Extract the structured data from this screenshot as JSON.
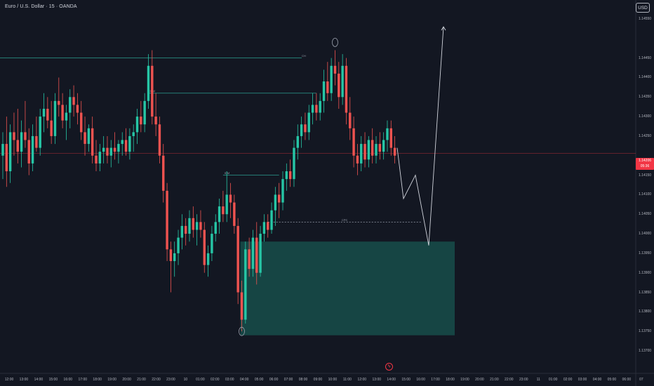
{
  "header": {
    "symbol_title": "Euro / U.S. Dollar · 15 · OANDA",
    "currency_button": "USD"
  },
  "price_badge": {
    "price": "1.14206",
    "countdown": "05:36"
  },
  "annotations": {
    "level_1": "CH",
    "level_2": "IDM",
    "level_3": "IDM",
    "level_4": "CPS"
  },
  "colors": {
    "background": "#131722",
    "bull": "#26c6a6",
    "bear": "#ef5350",
    "level_line": "#2a9d8f",
    "demand_zone": "#174d4a",
    "projection": "#d1d4dc",
    "current_price": "#f23645"
  },
  "icons": {
    "replay": "lightning-icon"
  },
  "chart_data": {
    "type": "candlestick",
    "title": "Euro / U.S. Dollar · 15 · OANDA",
    "ylim": [
      1.137,
      1.146
    ],
    "y_ticks": [
      "1.14550",
      "1.14450",
      "1.14400",
      "1.14350",
      "1.14300",
      "1.14250",
      "1.14150",
      "1.14100",
      "1.14050",
      "1.14000",
      "1.13950",
      "1.13900",
      "1.13850",
      "1.13800",
      "1.13750",
      "1.13700"
    ],
    "x_ticks": [
      "12:00",
      "13:00",
      "14:00",
      "15:00",
      "16:00",
      "17:00",
      "18:00",
      "19:00",
      "20:00",
      "21:00",
      "22:00",
      "23:00",
      "10",
      "01:00",
      "02:00",
      "03:00",
      "04:00",
      "05:00",
      "06:00",
      "07:00",
      "08:00",
      "09:00",
      "10:00",
      "11:00",
      "12:00",
      "13:00",
      "14:00",
      "15:00",
      "16:00",
      "17:00",
      "18:00",
      "19:00",
      "20:00",
      "21:00",
      "22:00",
      "23:00",
      "11",
      "01:00",
      "02:00",
      "03:00",
      "04:00",
      "05:00",
      "06:00",
      "07"
    ],
    "current_price": 1.14206,
    "candles": [
      {
        "t": "11:00",
        "o": 1.142,
        "h": 1.1426,
        "l": 1.1414,
        "c": 1.1423
      },
      {
        "t": "11:15",
        "o": 1.1423,
        "h": 1.143,
        "l": 1.1412,
        "c": 1.1416
      },
      {
        "t": "11:30",
        "o": 1.1416,
        "h": 1.1428,
        "l": 1.1413,
        "c": 1.1426
      },
      {
        "t": "11:45",
        "o": 1.1426,
        "h": 1.1431,
        "l": 1.142,
        "c": 1.1424
      },
      {
        "t": "12:00",
        "o": 1.1424,
        "h": 1.1432,
        "l": 1.1418,
        "c": 1.1421
      },
      {
        "t": "12:15",
        "o": 1.1421,
        "h": 1.1429,
        "l": 1.1417,
        "c": 1.1426
      },
      {
        "t": "12:30",
        "o": 1.1426,
        "h": 1.1434,
        "l": 1.1422,
        "c": 1.1424
      },
      {
        "t": "12:45",
        "o": 1.1424,
        "h": 1.1427,
        "l": 1.1415,
        "c": 1.1418
      },
      {
        "t": "13:00",
        "o": 1.1418,
        "h": 1.1428,
        "l": 1.1416,
        "c": 1.1425
      },
      {
        "t": "13:15",
        "o": 1.1425,
        "h": 1.143,
        "l": 1.1421,
        "c": 1.1422
      },
      {
        "t": "13:30",
        "o": 1.1422,
        "h": 1.1432,
        "l": 1.142,
        "c": 1.143
      },
      {
        "t": "13:45",
        "o": 1.143,
        "h": 1.1436,
        "l": 1.1426,
        "c": 1.1432
      },
      {
        "t": "14:00",
        "o": 1.1432,
        "h": 1.1435,
        "l": 1.1427,
        "c": 1.1429
      },
      {
        "t": "14:15",
        "o": 1.1429,
        "h": 1.1434,
        "l": 1.1423,
        "c": 1.1425
      },
      {
        "t": "14:30",
        "o": 1.1425,
        "h": 1.1436,
        "l": 1.1423,
        "c": 1.1434
      },
      {
        "t": "14:45",
        "o": 1.1434,
        "h": 1.144,
        "l": 1.143,
        "c": 1.1433
      },
      {
        "t": "15:00",
        "o": 1.1433,
        "h": 1.1436,
        "l": 1.1427,
        "c": 1.1429
      },
      {
        "t": "15:15",
        "o": 1.1429,
        "h": 1.1433,
        "l": 1.1424,
        "c": 1.1431
      },
      {
        "t": "15:30",
        "o": 1.1431,
        "h": 1.1437,
        "l": 1.1427,
        "c": 1.1435
      },
      {
        "t": "15:45",
        "o": 1.1435,
        "h": 1.1438,
        "l": 1.143,
        "c": 1.1433
      },
      {
        "t": "16:00",
        "o": 1.1433,
        "h": 1.1436,
        "l": 1.1428,
        "c": 1.1431
      },
      {
        "t": "16:15",
        "o": 1.1431,
        "h": 1.1434,
        "l": 1.1424,
        "c": 1.1426
      },
      {
        "t": "16:30",
        "o": 1.1426,
        "h": 1.143,
        "l": 1.142,
        "c": 1.1423
      },
      {
        "t": "16:45",
        "o": 1.1423,
        "h": 1.1428,
        "l": 1.1421,
        "c": 1.1427
      },
      {
        "t": "17:00",
        "o": 1.1427,
        "h": 1.143,
        "l": 1.1418,
        "c": 1.142
      },
      {
        "t": "17:15",
        "o": 1.142,
        "h": 1.1424,
        "l": 1.1416,
        "c": 1.1418
      },
      {
        "t": "17:30",
        "o": 1.1418,
        "h": 1.1423,
        "l": 1.1416,
        "c": 1.1421
      },
      {
        "t": "17:45",
        "o": 1.1421,
        "h": 1.1425,
        "l": 1.1418,
        "c": 1.1422
      },
      {
        "t": "18:00",
        "o": 1.1422,
        "h": 1.1425,
        "l": 1.1418,
        "c": 1.142
      },
      {
        "t": "18:15",
        "o": 1.142,
        "h": 1.1424,
        "l": 1.1417,
        "c": 1.1422
      },
      {
        "t": "18:30",
        "o": 1.1422,
        "h": 1.1426,
        "l": 1.1419,
        "c": 1.1421
      },
      {
        "t": "18:45",
        "o": 1.1421,
        "h": 1.1424,
        "l": 1.1418,
        "c": 1.1423
      },
      {
        "t": "19:00",
        "o": 1.1423,
        "h": 1.1426,
        "l": 1.142,
        "c": 1.1424
      },
      {
        "t": "19:15",
        "o": 1.1424,
        "h": 1.1427,
        "l": 1.142,
        "c": 1.1421
      },
      {
        "t": "19:30",
        "o": 1.1421,
        "h": 1.1427,
        "l": 1.1419,
        "c": 1.1425
      },
      {
        "t": "19:45",
        "o": 1.1425,
        "h": 1.1428,
        "l": 1.1421,
        "c": 1.1426
      },
      {
        "t": "20:00",
        "o": 1.1426,
        "h": 1.1432,
        "l": 1.1423,
        "c": 1.143
      },
      {
        "t": "20:15",
        "o": 1.143,
        "h": 1.1434,
        "l": 1.1426,
        "c": 1.1428
      },
      {
        "t": "20:30",
        "o": 1.1428,
        "h": 1.1436,
        "l": 1.1426,
        "c": 1.1434
      },
      {
        "t": "20:45",
        "o": 1.1434,
        "h": 1.1446,
        "l": 1.1432,
        "c": 1.1443
      },
      {
        "t": "21:00",
        "o": 1.1443,
        "h": 1.1447,
        "l": 1.1428,
        "c": 1.143
      },
      {
        "t": "21:15",
        "o": 1.143,
        "h": 1.1436,
        "l": 1.1425,
        "c": 1.1428
      },
      {
        "t": "21:30",
        "o": 1.1428,
        "h": 1.143,
        "l": 1.1418,
        "c": 1.142
      },
      {
        "t": "21:45",
        "o": 1.142,
        "h": 1.1423,
        "l": 1.1408,
        "c": 1.1411
      },
      {
        "t": "22:00",
        "o": 1.1411,
        "h": 1.1413,
        "l": 1.1393,
        "c": 1.1396
      },
      {
        "t": "22:15",
        "o": 1.1396,
        "h": 1.1398,
        "l": 1.1385,
        "c": 1.1393
      },
      {
        "t": "22:30",
        "o": 1.1393,
        "h": 1.1398,
        "l": 1.1389,
        "c": 1.1395
      },
      {
        "t": "22:45",
        "o": 1.1395,
        "h": 1.1401,
        "l": 1.1392,
        "c": 1.1399
      },
      {
        "t": "23:00",
        "o": 1.1399,
        "h": 1.1405,
        "l": 1.1396,
        "c": 1.1402
      },
      {
        "t": "23:15",
        "o": 1.1402,
        "h": 1.1404,
        "l": 1.1397,
        "c": 1.14
      },
      {
        "t": "23:30",
        "o": 1.14,
        "h": 1.1406,
        "l": 1.1398,
        "c": 1.1404
      },
      {
        "t": "23:45",
        "o": 1.1404,
        "h": 1.1407,
        "l": 1.1399,
        "c": 1.1401
      },
      {
        "t": "00:00",
        "o": 1.1401,
        "h": 1.1405,
        "l": 1.1397,
        "c": 1.1403
      },
      {
        "t": "00:15",
        "o": 1.1403,
        "h": 1.1406,
        "l": 1.1399,
        "c": 1.1401
      },
      {
        "t": "00:30",
        "o": 1.1401,
        "h": 1.1403,
        "l": 1.139,
        "c": 1.1392
      },
      {
        "t": "00:45",
        "o": 1.1392,
        "h": 1.1397,
        "l": 1.1389,
        "c": 1.1395
      },
      {
        "t": "01:00",
        "o": 1.1395,
        "h": 1.1402,
        "l": 1.1393,
        "c": 1.14
      },
      {
        "t": "01:15",
        "o": 1.14,
        "h": 1.1405,
        "l": 1.1398,
        "c": 1.1403
      },
      {
        "t": "01:30",
        "o": 1.1403,
        "h": 1.1409,
        "l": 1.14,
        "c": 1.1407
      },
      {
        "t": "01:45",
        "o": 1.1407,
        "h": 1.1411,
        "l": 1.1403,
        "c": 1.1405
      },
      {
        "t": "02:00",
        "o": 1.1405,
        "h": 1.1416,
        "l": 1.1403,
        "c": 1.141
      },
      {
        "t": "02:15",
        "o": 1.141,
        "h": 1.1413,
        "l": 1.1404,
        "c": 1.1408
      },
      {
        "t": "02:30",
        "o": 1.1408,
        "h": 1.141,
        "l": 1.14,
        "c": 1.1402
      },
      {
        "t": "02:45",
        "o": 1.1402,
        "h": 1.1404,
        "l": 1.1382,
        "c": 1.1385
      },
      {
        "t": "03:00",
        "o": 1.1385,
        "h": 1.1388,
        "l": 1.1375,
        "c": 1.1378
      },
      {
        "t": "03:15",
        "o": 1.1378,
        "h": 1.1398,
        "l": 1.1377,
        "c": 1.1396
      },
      {
        "t": "03:30",
        "o": 1.1396,
        "h": 1.1399,
        "l": 1.1389,
        "c": 1.1391
      },
      {
        "t": "03:45",
        "o": 1.1391,
        "h": 1.1401,
        "l": 1.1389,
        "c": 1.1399
      },
      {
        "t": "04:00",
        "o": 1.1399,
        "h": 1.1403,
        "l": 1.1387,
        "c": 1.139
      },
      {
        "t": "04:15",
        "o": 1.139,
        "h": 1.1402,
        "l": 1.1389,
        "c": 1.14
      },
      {
        "t": "04:30",
        "o": 1.14,
        "h": 1.1405,
        "l": 1.1398,
        "c": 1.1403
      },
      {
        "t": "04:45",
        "o": 1.1403,
        "h": 1.1405,
        "l": 1.1399,
        "c": 1.1401
      },
      {
        "t": "05:00",
        "o": 1.1401,
        "h": 1.1408,
        "l": 1.14,
        "c": 1.1406
      },
      {
        "t": "05:15",
        "o": 1.1406,
        "h": 1.1412,
        "l": 1.1402,
        "c": 1.141
      },
      {
        "t": "05:30",
        "o": 1.141,
        "h": 1.1413,
        "l": 1.1404,
        "c": 1.1408
      },
      {
        "t": "05:45",
        "o": 1.1408,
        "h": 1.1416,
        "l": 1.1406,
        "c": 1.1414
      },
      {
        "t": "06:00",
        "o": 1.1414,
        "h": 1.1418,
        "l": 1.1411,
        "c": 1.1416
      },
      {
        "t": "06:15",
        "o": 1.1416,
        "h": 1.1419,
        "l": 1.1412,
        "c": 1.1414
      },
      {
        "t": "06:30",
        "o": 1.1414,
        "h": 1.1424,
        "l": 1.1412,
        "c": 1.1422
      },
      {
        "t": "06:45",
        "o": 1.1422,
        "h": 1.1428,
        "l": 1.1419,
        "c": 1.1425
      },
      {
        "t": "07:00",
        "o": 1.1425,
        "h": 1.143,
        "l": 1.1422,
        "c": 1.1428
      },
      {
        "t": "07:15",
        "o": 1.1428,
        "h": 1.1431,
        "l": 1.1424,
        "c": 1.1426
      },
      {
        "t": "07:30",
        "o": 1.1426,
        "h": 1.1433,
        "l": 1.1424,
        "c": 1.1431
      },
      {
        "t": "07:45",
        "o": 1.1431,
        "h": 1.1436,
        "l": 1.1428,
        "c": 1.1433
      },
      {
        "t": "08:00",
        "o": 1.1433,
        "h": 1.1436,
        "l": 1.1429,
        "c": 1.1431
      },
      {
        "t": "08:15",
        "o": 1.1431,
        "h": 1.1436,
        "l": 1.1429,
        "c": 1.1434
      },
      {
        "t": "08:30",
        "o": 1.1434,
        "h": 1.1442,
        "l": 1.1431,
        "c": 1.1439
      },
      {
        "t": "08:45",
        "o": 1.1439,
        "h": 1.1444,
        "l": 1.1434,
        "c": 1.1436
      },
      {
        "t": "09:00",
        "o": 1.1436,
        "h": 1.1445,
        "l": 1.1434,
        "c": 1.1443
      },
      {
        "t": "09:15",
        "o": 1.1443,
        "h": 1.1447,
        "l": 1.1438,
        "c": 1.1441
      },
      {
        "t": "09:30",
        "o": 1.1441,
        "h": 1.1444,
        "l": 1.1432,
        "c": 1.1435
      },
      {
        "t": "09:45",
        "o": 1.1435,
        "h": 1.1446,
        "l": 1.1433,
        "c": 1.1443
      },
      {
        "t": "10:00",
        "o": 1.1443,
        "h": 1.1445,
        "l": 1.1428,
        "c": 1.1431
      },
      {
        "t": "10:15",
        "o": 1.1431,
        "h": 1.1435,
        "l": 1.1424,
        "c": 1.1427
      },
      {
        "t": "10:30",
        "o": 1.1427,
        "h": 1.143,
        "l": 1.1417,
        "c": 1.142
      },
      {
        "t": "10:45",
        "o": 1.142,
        "h": 1.1423,
        "l": 1.1415,
        "c": 1.1418
      },
      {
        "t": "11:00",
        "o": 1.1418,
        "h": 1.1425,
        "l": 1.1416,
        "c": 1.1423
      },
      {
        "t": "11:15",
        "o": 1.1423,
        "h": 1.1426,
        "l": 1.1417,
        "c": 1.1419
      },
      {
        "t": "11:30",
        "o": 1.1419,
        "h": 1.1425,
        "l": 1.1417,
        "c": 1.1424
      },
      {
        "t": "11:45",
        "o": 1.1424,
        "h": 1.1427,
        "l": 1.1418,
        "c": 1.142
      },
      {
        "t": "12:00",
        "o": 1.142,
        "h": 1.1425,
        "l": 1.1418,
        "c": 1.1423
      },
      {
        "t": "12:15",
        "o": 1.1423,
        "h": 1.1426,
        "l": 1.1419,
        "c": 1.1421
      },
      {
        "t": "12:30",
        "o": 1.1421,
        "h": 1.1426,
        "l": 1.1419,
        "c": 1.1424
      },
      {
        "t": "12:45",
        "o": 1.1424,
        "h": 1.1429,
        "l": 1.1421,
        "c": 1.1427
      },
      {
        "t": "13:00",
        "o": 1.1427,
        "h": 1.1429,
        "l": 1.142,
        "c": 1.1422
      },
      {
        "t": "13:15",
        "o": 1.1422,
        "h": 1.1425,
        "l": 1.1418,
        "c": 1.142
      }
    ],
    "levels": [
      {
        "label": "CH",
        "price": 1.1445,
        "from": "11:00",
        "to": "09:00"
      },
      {
        "label": "IDM",
        "price": 1.1436,
        "from": "20:45",
        "to": "08:30"
      },
      {
        "label": "IDM",
        "price": 1.1415,
        "from": "01:45",
        "to": "05:45"
      },
      {
        "label": "CPS",
        "price": 1.1403,
        "from": "04:45",
        "to": "15:15",
        "dashed": true
      }
    ],
    "demand_zone": {
      "top": 1.1398,
      "bottom": 1.1374,
      "from": "03:00",
      "to": "17:15"
    },
    "projection_path": [
      {
        "t": "13:30",
        "price": 1.1422
      },
      {
        "t": "14:15",
        "price": 1.1409
      },
      {
        "t": "15:00",
        "price": 1.1415
      },
      {
        "t": "15:45",
        "price": 1.1397
      },
      {
        "t": "16:30",
        "price": 1.1453
      }
    ],
    "marked_points": [
      {
        "t": "09:15",
        "price": 1.1447
      },
      {
        "t": "03:00",
        "price": 1.1375
      }
    ]
  }
}
